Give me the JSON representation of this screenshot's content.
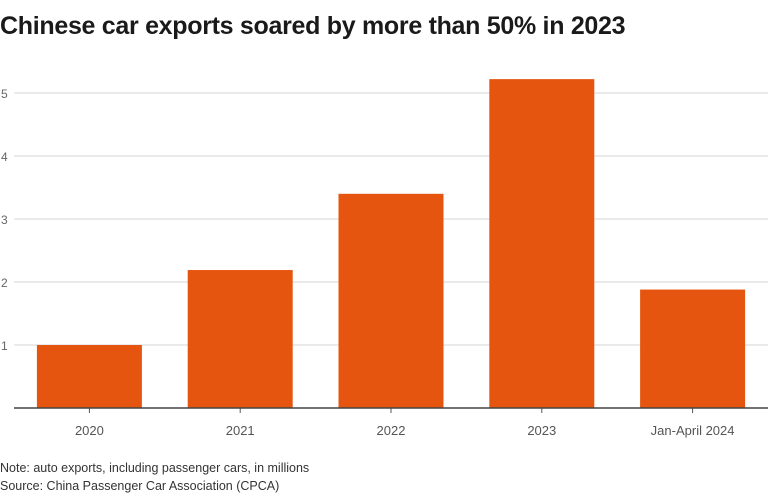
{
  "chart_data": {
    "type": "bar",
    "title": "Chinese car exports soared by more than 50% in 2023",
    "categories": [
      "2020",
      "2021",
      "2022",
      "2023",
      "Jan-April 2024"
    ],
    "values": [
      1.0,
      2.19,
      3.4,
      5.22,
      1.88
    ],
    "yticks": [
      1,
      2,
      3,
      4,
      5
    ],
    "ylim": [
      0,
      5.3
    ],
    "xlabel": "",
    "ylabel": "",
    "grid": true,
    "bar_color": "#e5550f",
    "note": "Note: auto exports, including passenger cars, in millions",
    "source": "Source: China Passenger Car Association (CPCA)"
  }
}
